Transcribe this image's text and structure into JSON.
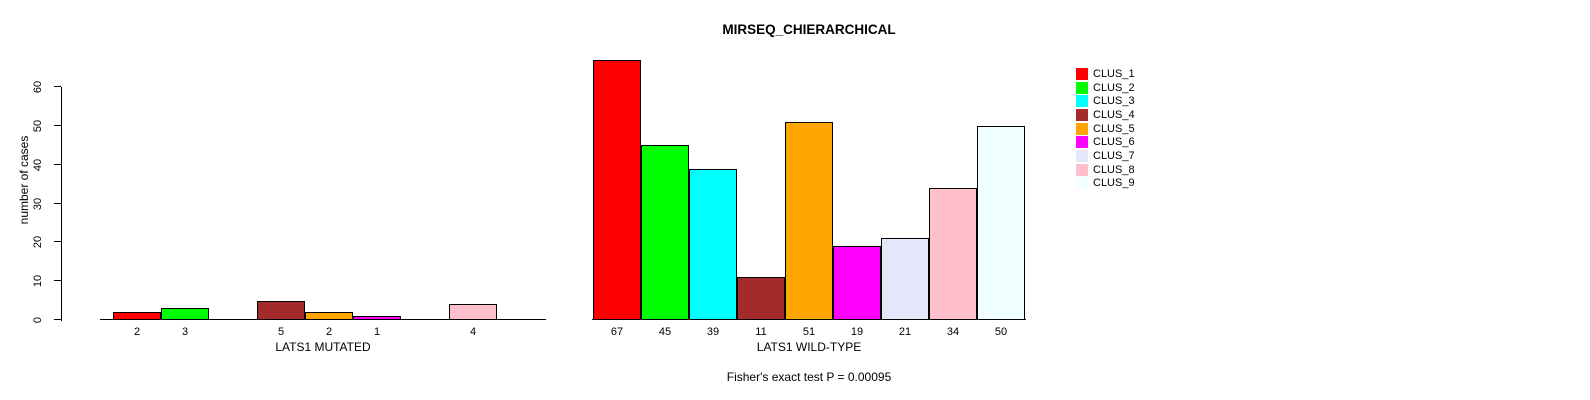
{
  "title": "MIRSEQ_CHIERARCHICAL",
  "footer": "Fisher's exact test P = 0.00095",
  "chart_data": {
    "type": "bar",
    "title": "MIRSEQ_CHIERARCHICAL",
    "ylabel": "number of cases",
    "ylim": [
      0,
      60
    ],
    "y_ticks": [
      0,
      10,
      20,
      30,
      40,
      50,
      60
    ],
    "grid": false,
    "legend_position": "top-right",
    "categories": [
      "CLUS_1",
      "CLUS_2",
      "CLUS_3",
      "CLUS_4",
      "CLUS_5",
      "CLUS_6",
      "CLUS_7",
      "CLUS_8",
      "CLUS_9"
    ],
    "colors": [
      "#FF0000",
      "#00FF00",
      "#00FFFF",
      "#A52A2A",
      "#FFA500",
      "#FF00FF",
      "#E6E6FA",
      "#FFC0CB",
      "#F0FFFF"
    ],
    "panels": [
      {
        "xlabel": "LATS1 MUTATED",
        "values": [
          2,
          3,
          0,
          5,
          2,
          1,
          0,
          4,
          0
        ]
      },
      {
        "xlabel": "LATS1 WILD-TYPE",
        "values": [
          67,
          45,
          39,
          11,
          51,
          19,
          21,
          34,
          50
        ]
      }
    ],
    "bar_label_rule": "value shown under each non-zero bar",
    "annotation": "Fisher's exact test P = 0.00095"
  }
}
